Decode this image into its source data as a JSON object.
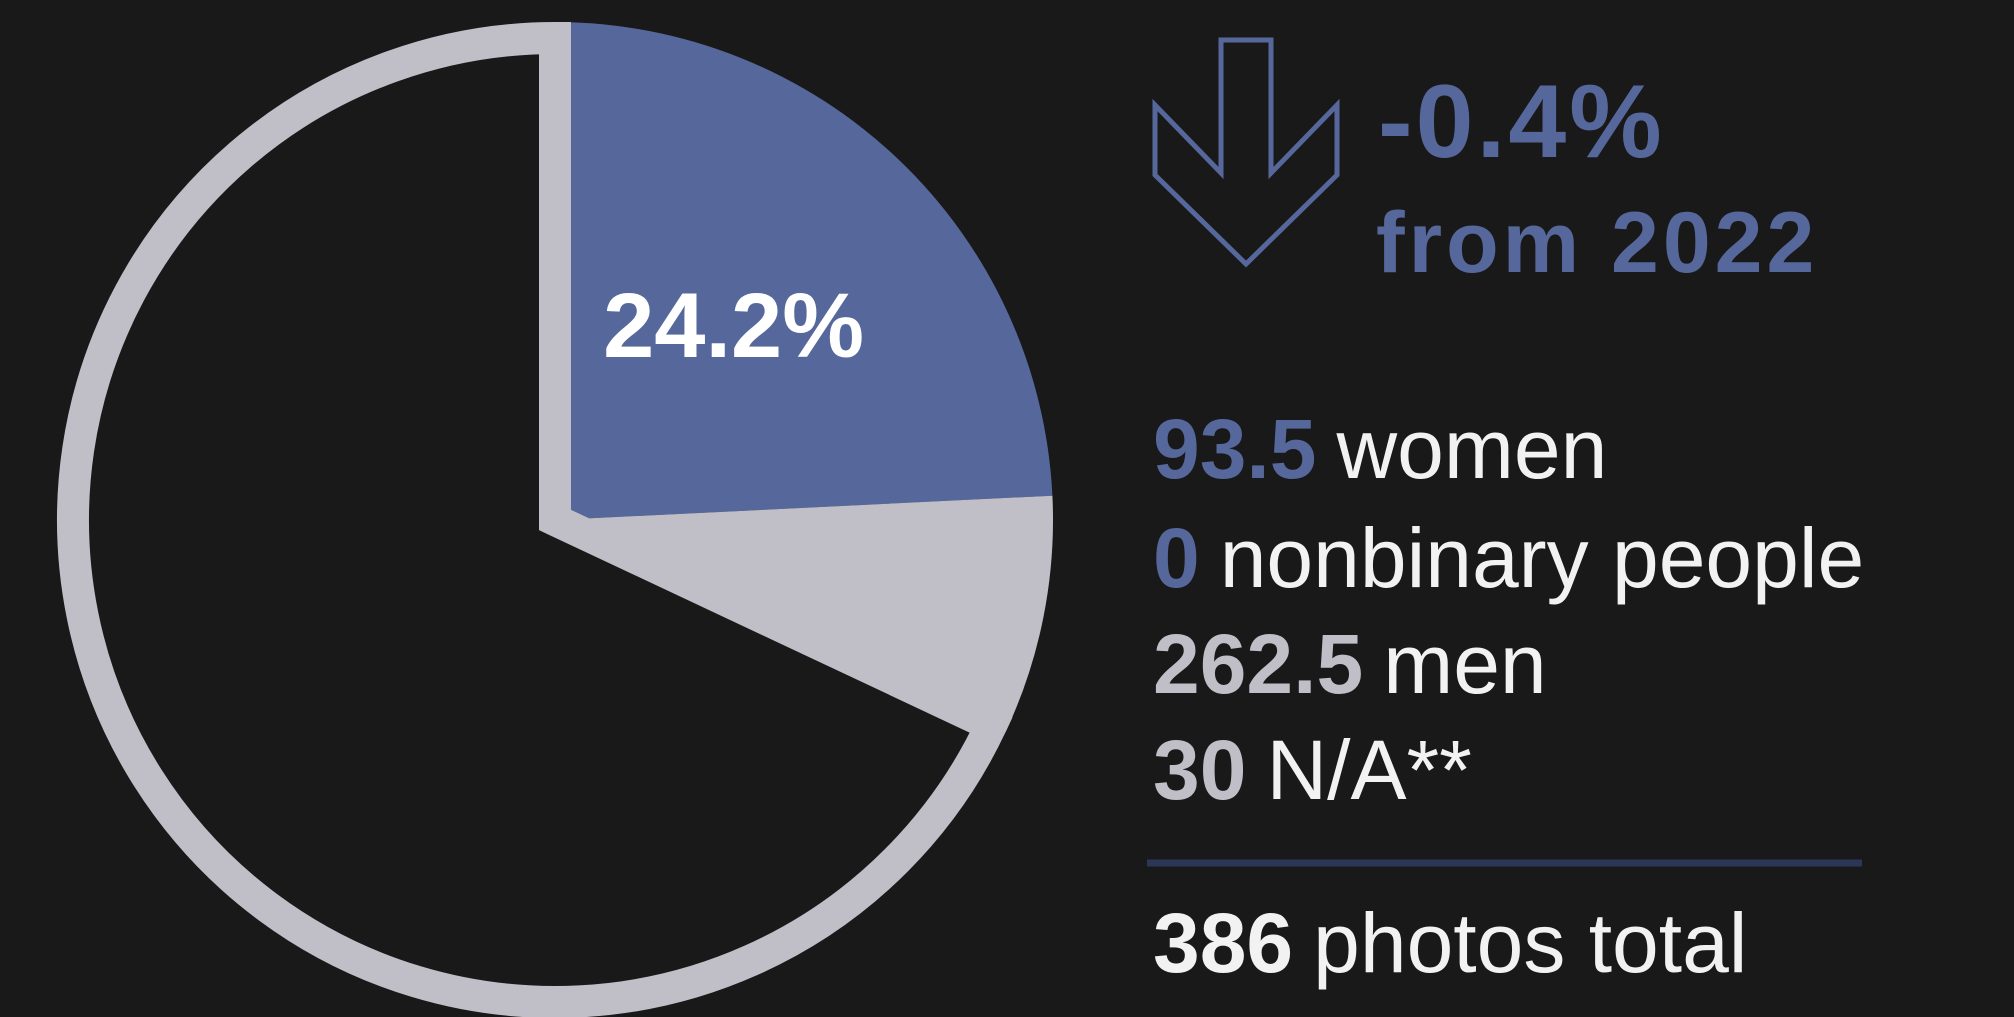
{
  "chart_data": {
    "type": "pie",
    "categories": [
      "women",
      "nonbinary people",
      "men",
      "N/A**"
    ],
    "values": [
      93.5,
      0,
      262.5,
      30
    ],
    "colors": [
      "#56689b",
      "#56689b",
      "#c0bfc7",
      "#c0bfc7"
    ],
    "hollow": [
      false,
      false,
      true,
      false
    ],
    "slice_label": "24.2%",
    "change_label": "-0.4%",
    "change_note": "from 2022",
    "total": 386,
    "total_label": "photos total"
  }
}
